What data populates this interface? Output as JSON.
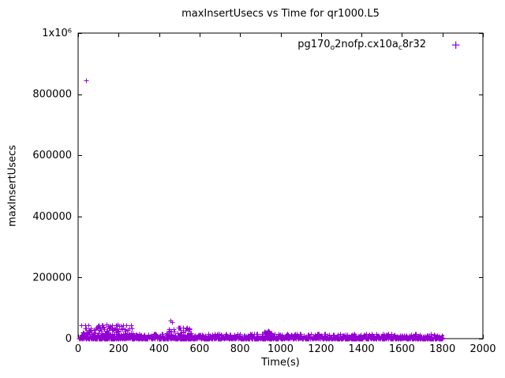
{
  "chart_data": {
    "type": "scatter",
    "title": "maxInsertUsecs vs Time for qr1000.L5",
    "xlabel": "Time(s)",
    "ylabel": "maxInsertUsecs",
    "xlim": [
      0,
      2000
    ],
    "ylim": [
      0,
      1000000
    ],
    "grid": false,
    "x_ticks": [
      {
        "value": 0,
        "label": "0"
      },
      {
        "value": 200,
        "label": "200"
      },
      {
        "value": 400,
        "label": "400"
      },
      {
        "value": 600,
        "label": "600"
      },
      {
        "value": 800,
        "label": "800"
      },
      {
        "value": 1000,
        "label": "1000"
      },
      {
        "value": 1200,
        "label": "1200"
      },
      {
        "value": 1400,
        "label": "1400"
      },
      {
        "value": 1600,
        "label": "1600"
      },
      {
        "value": 1800,
        "label": "1800"
      },
      {
        "value": 2000,
        "label": "2000"
      }
    ],
    "y_ticks": [
      {
        "value": 0,
        "label": "0"
      },
      {
        "value": 200000,
        "label": "200000"
      },
      {
        "value": 400000,
        "label": "400000"
      },
      {
        "value": 600000,
        "label": "600000"
      },
      {
        "value": 800000,
        "label": "800000"
      },
      {
        "value": 1000000,
        "label": "1x10⁶"
      }
    ],
    "legend_position": "top-right",
    "series": [
      {
        "name": "pg170_o2nofp.cx10a_c8r32",
        "label_segments": [
          {
            "text": "pg170",
            "sub": false
          },
          {
            "text": "o",
            "sub": true
          },
          {
            "text": "2nofp.cx10a",
            "sub": false
          },
          {
            "text": "c",
            "sub": true
          },
          {
            "text": "8r32",
            "sub": false
          }
        ],
        "marker": "plus",
        "marker_glyph": "+",
        "color": "#9400d3",
        "outliers": [
          [
            40,
            845000
          ],
          [
            458,
            60000
          ],
          [
            462,
            55000
          ],
          [
            520,
            36000
          ],
          [
            548,
            31000
          ],
          [
            96,
            41000
          ],
          [
            118,
            44000
          ],
          [
            142,
            47500
          ],
          [
            168,
            45000
          ],
          [
            196,
            46000
          ],
          [
            222,
            43000
          ],
          [
            938,
            25500
          ],
          [
            944,
            23000
          ]
        ],
        "baseline_bands": [
          {
            "x_start": 3,
            "x_end": 1802,
            "count": 1000,
            "y_min": 500,
            "y_max": 16000,
            "bias": 2.2,
            "note": "dense flat band hugging y≈0 across full run"
          },
          {
            "x_start": 3,
            "x_end": 1802,
            "count": 450,
            "y_min": 300,
            "y_max": 6000,
            "bias": 1.0
          }
        ],
        "clusters": [
          {
            "x_start": 15,
            "x_end": 270,
            "count": 130,
            "y_min": 8000,
            "y_max": 45000,
            "bias": 1.6,
            "note": "noisy warm-up region"
          },
          {
            "x_start": 435,
            "x_end": 480,
            "count": 14,
            "y_min": 8000,
            "y_max": 33000,
            "bias": 1.3
          },
          {
            "x_start": 490,
            "x_end": 565,
            "count": 24,
            "y_min": 8000,
            "y_max": 36000,
            "bias": 1.5
          },
          {
            "x_start": 918,
            "x_end": 958,
            "count": 32,
            "y_min": 5000,
            "y_max": 25000,
            "bias": 1.2,
            "note": "small mid-run bump"
          }
        ]
      }
    ]
  },
  "layout_note": "single gnuplot-style scatter panel, black border, ticks mirrored on all four sides"
}
